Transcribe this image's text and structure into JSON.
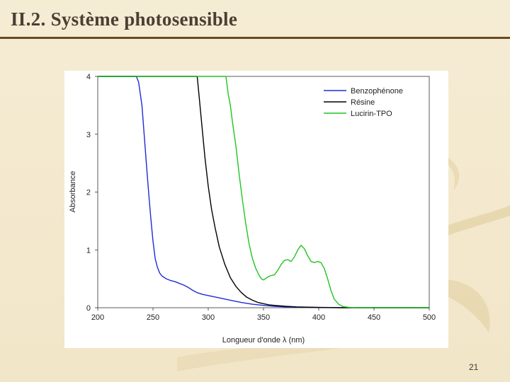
{
  "slide": {
    "title": "II.2. Système photosensible",
    "page_number": "21"
  },
  "colors": {
    "background": "#f3e8cc",
    "title_text": "#4a3f33",
    "title_rule": "#6b4a22",
    "benzophenone": "#1f2ad6",
    "resine": "#000000",
    "lucirin": "#22c422"
  },
  "chart_data": {
    "type": "line",
    "title": "",
    "xlabel": "Longueur d'onde λ (nm)",
    "ylabel": "Absorbance",
    "xlim": [
      200,
      500
    ],
    "ylim": [
      0,
      4
    ],
    "x_ticks": [
      200,
      250,
      300,
      350,
      400,
      450,
      500
    ],
    "y_ticks": [
      0,
      1,
      2,
      3,
      4
    ],
    "grid": false,
    "legend_position": "top-right",
    "series": [
      {
        "name": "Benzophénone",
        "color": "#1f2ad6",
        "x": [
          200,
          235,
          237,
          240,
          242,
          244,
          246,
          248,
          250,
          252,
          254,
          256,
          258,
          262,
          266,
          270,
          274,
          278,
          282,
          286,
          290,
          295,
          300,
          310,
          320,
          330,
          340,
          350,
          360,
          370,
          380,
          400,
          450,
          500
        ],
        "y": [
          4,
          4,
          3.9,
          3.5,
          3.0,
          2.5,
          2.0,
          1.55,
          1.15,
          0.85,
          0.7,
          0.6,
          0.55,
          0.5,
          0.47,
          0.45,
          0.42,
          0.39,
          0.35,
          0.3,
          0.26,
          0.23,
          0.21,
          0.17,
          0.13,
          0.09,
          0.06,
          0.04,
          0.025,
          0.015,
          0.01,
          0.005,
          0,
          0
        ]
      },
      {
        "name": "Résine",
        "color": "#000000",
        "x": [
          200,
          290,
          291,
          293,
          295,
          297,
          300,
          303,
          306,
          310,
          315,
          320,
          325,
          330,
          335,
          340,
          345,
          350,
          355,
          360,
          370,
          380,
          390,
          400,
          420,
          450,
          500
        ],
        "y": [
          4,
          4,
          3.8,
          3.4,
          3.0,
          2.6,
          2.1,
          1.7,
          1.4,
          1.05,
          0.75,
          0.52,
          0.37,
          0.26,
          0.18,
          0.13,
          0.09,
          0.07,
          0.05,
          0.04,
          0.025,
          0.015,
          0.01,
          0.005,
          0,
          0,
          0
        ]
      },
      {
        "name": "Lucirin-TPO",
        "color": "#22c422",
        "x": [
          200,
          316,
          318,
          320,
          322,
          325,
          328,
          331,
          334,
          337,
          340,
          343,
          346,
          348,
          350,
          353,
          356,
          360,
          363,
          366,
          369,
          372,
          375,
          378,
          381,
          384,
          387,
          390,
          393,
          396,
          399,
          402,
          405,
          408,
          411,
          414,
          418,
          422,
          428,
          435,
          450,
          500
        ],
        "y": [
          4,
          4,
          3.7,
          3.5,
          3.2,
          2.8,
          2.3,
          1.85,
          1.45,
          1.1,
          0.85,
          0.68,
          0.56,
          0.5,
          0.48,
          0.52,
          0.55,
          0.57,
          0.65,
          0.75,
          0.82,
          0.83,
          0.8,
          0.88,
          1.0,
          1.08,
          1.02,
          0.9,
          0.8,
          0.78,
          0.8,
          0.78,
          0.68,
          0.5,
          0.3,
          0.15,
          0.06,
          0.02,
          0.005,
          0,
          0,
          0
        ]
      }
    ]
  }
}
